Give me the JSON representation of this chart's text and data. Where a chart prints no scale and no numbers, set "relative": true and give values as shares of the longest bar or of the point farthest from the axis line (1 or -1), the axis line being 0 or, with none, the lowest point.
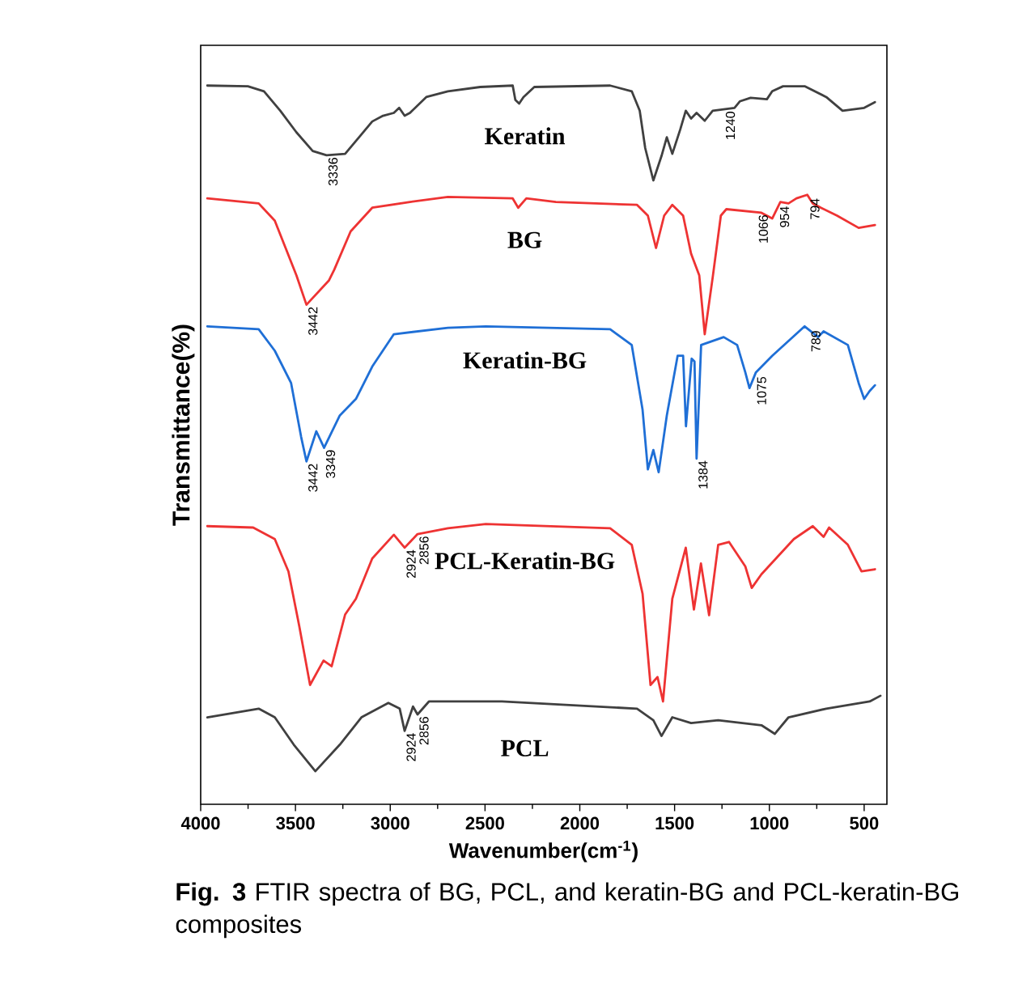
{
  "chart_data": {
    "type": "line",
    "relative": true,
    "xlabel": "Wavenumber(cm$^{-1}$)",
    "ylabel": "Transmittance(%)",
    "xlim": [
      4000,
      380
    ],
    "xticks": [
      4000,
      3500,
      3000,
      2500,
      2000,
      1500,
      1000,
      500
    ],
    "series": [
      {
        "name": "Keratin",
        "color": "#404040",
        "x": [
          3965,
          3751,
          3666,
          3580,
          3495,
          3409,
          3336,
          3238,
          3152,
          3095,
          3038,
          2981,
          2953,
          2924,
          2896,
          2810,
          2696,
          2525,
          2354,
          2340,
          2320,
          2297,
          2240,
          1840,
          1726,
          1684,
          1655,
          1612,
          1569,
          1541,
          1512,
          1470,
          1441,
          1413,
          1384,
          1341,
          1299,
          1184,
          1156,
          1099,
          1013,
          985,
          928,
          814,
          700,
          614,
          557,
          500,
          443
        ],
        "values": [
          1.0,
          0.999,
          0.992,
          0.965,
          0.935,
          0.909,
          0.903,
          0.905,
          0.932,
          0.95,
          0.958,
          0.962,
          0.969,
          0.958,
          0.962,
          0.984,
          0.992,
          0.998,
          1.0,
          0.98,
          0.975,
          0.984,
          0.998,
          1.0,
          0.992,
          0.965,
          0.913,
          0.868,
          0.902,
          0.928,
          0.905,
          0.939,
          0.965,
          0.954,
          0.962,
          0.951,
          0.965,
          0.969,
          0.978,
          0.983,
          0.981,
          0.992,
          0.999,
          0.999,
          0.984,
          0.965,
          0.967,
          0.969,
          0.977
        ]
      },
      {
        "name": "BG",
        "color": "#ee3333",
        "x": [
          3965,
          3694,
          3609,
          3552,
          3495,
          3442,
          3323,
          3295,
          3209,
          3095,
          2896,
          2696,
          2354,
          2325,
          2282,
          2126,
          1698,
          1641,
          1598,
          1555,
          1512,
          1455,
          1413,
          1370,
          1341,
          1299,
          1256,
          1227,
          1042,
          985,
          942,
          899,
          857,
          800,
          771,
          728,
          643,
          529,
          443
        ],
        "values": [
          0.843,
          0.836,
          0.812,
          0.774,
          0.736,
          0.695,
          0.729,
          0.744,
          0.797,
          0.83,
          0.838,
          0.845,
          0.843,
          0.83,
          0.843,
          0.838,
          0.834,
          0.819,
          0.774,
          0.819,
          0.834,
          0.819,
          0.766,
          0.736,
          0.654,
          0.733,
          0.819,
          0.828,
          0.823,
          0.815,
          0.838,
          0.836,
          0.843,
          0.848,
          0.836,
          0.83,
          0.819,
          0.802,
          0.806
        ]
      },
      {
        "name": "Keratin-BG",
        "color": "#1f6fd6",
        "x": [
          3965,
          3694,
          3609,
          3523,
          3470,
          3442,
          3390,
          3349,
          3266,
          3181,
          3095,
          2981,
          2696,
          2496,
          1840,
          1726,
          1669,
          1641,
          1612,
          1584,
          1541,
          1484,
          1455,
          1440,
          1410,
          1395,
          1384,
          1360,
          1241,
          1170,
          1127,
          1105,
          1071,
          985,
          814,
          743,
          714,
          586,
          529,
          500,
          471,
          443
        ],
        "values": [
          0.665,
          0.661,
          0.631,
          0.586,
          0.511,
          0.477,
          0.519,
          0.496,
          0.541,
          0.564,
          0.609,
          0.654,
          0.663,
          0.665,
          0.661,
          0.639,
          0.549,
          0.466,
          0.493,
          0.462,
          0.541,
          0.624,
          0.624,
          0.526,
          0.62,
          0.616,
          0.481,
          0.639,
          0.65,
          0.639,
          0.601,
          0.579,
          0.601,
          0.624,
          0.665,
          0.65,
          0.658,
          0.639,
          0.586,
          0.564,
          0.575,
          0.583
        ]
      },
      {
        "name": "PCL-Keratin-BG",
        "color": "#ee3333",
        "x": [
          3965,
          3723,
          3609,
          3537,
          3480,
          3423,
          3352,
          3309,
          3238,
          3181,
          3095,
          2981,
          2924,
          2856,
          2696,
          2496,
          1840,
          1726,
          1669,
          1627,
          1590,
          1561,
          1512,
          1441,
          1398,
          1361,
          1318,
          1270,
          1213,
          1127,
          1093,
          1042,
          871,
          771,
          714,
          685,
          586,
          514,
          443
        ],
        "values": [
          0.387,
          0.385,
          0.369,
          0.324,
          0.248,
          0.166,
          0.2,
          0.192,
          0.264,
          0.286,
          0.342,
          0.375,
          0.357,
          0.376,
          0.384,
          0.39,
          0.384,
          0.361,
          0.293,
          0.166,
          0.177,
          0.143,
          0.286,
          0.357,
          0.271,
          0.335,
          0.263,
          0.361,
          0.365,
          0.331,
          0.301,
          0.32,
          0.369,
          0.387,
          0.372,
          0.385,
          0.361,
          0.324,
          0.327
        ]
      },
      {
        "name": "PCL",
        "color": "#404040",
        "x": [
          3965,
          3694,
          3609,
          3509,
          3395,
          3266,
          3152,
          3010,
          2950,
          2924,
          2880,
          2856,
          2796,
          2411,
          1698,
          1612,
          1569,
          1512,
          1413,
          1270,
          1042,
          971,
          899,
          700,
          471,
          414
        ],
        "values": [
          0.121,
          0.133,
          0.121,
          0.083,
          0.046,
          0.083,
          0.121,
          0.141,
          0.133,
          0.102,
          0.136,
          0.125,
          0.143,
          0.143,
          0.133,
          0.117,
          0.095,
          0.121,
          0.113,
          0.117,
          0.11,
          0.098,
          0.121,
          0.133,
          0.143,
          0.151
        ]
      }
    ],
    "annotations": [
      {
        "text": "3336",
        "x": 3336,
        "y": 0.903
      },
      {
        "text": "1240",
        "x": 1240,
        "y": 0.967
      },
      {
        "text": "1066",
        "x": 1066,
        "y": 0.823
      },
      {
        "text": "954",
        "x": 954,
        "y": 0.835
      },
      {
        "text": "794",
        "x": 794,
        "y": 0.846
      },
      {
        "text": "3442",
        "x": 3442,
        "y": 0.695
      },
      {
        "text": "3442",
        "x": 3442,
        "y": 0.477
      },
      {
        "text": "3349",
        "x": 3349,
        "y": 0.496
      },
      {
        "text": "1384",
        "x": 1384,
        "y": 0.481
      },
      {
        "text": "1075",
        "x": 1075,
        "y": 0.598
      },
      {
        "text": "789",
        "x": 789,
        "y": 0.662
      },
      {
        "text": "2924",
        "x": 2924,
        "y": 0.357
      },
      {
        "text": "2856",
        "x": 2856,
        "y": 0.376
      },
      {
        "text": "2924",
        "x": 2924,
        "y": 0.102
      },
      {
        "text": "2856",
        "x": 2856,
        "y": 0.125
      },
      "**Fig. 3** FTIR spectra of BG, PCL, and keratin-BG and PCL-keratin-BG composites"
    ]
  }
}
